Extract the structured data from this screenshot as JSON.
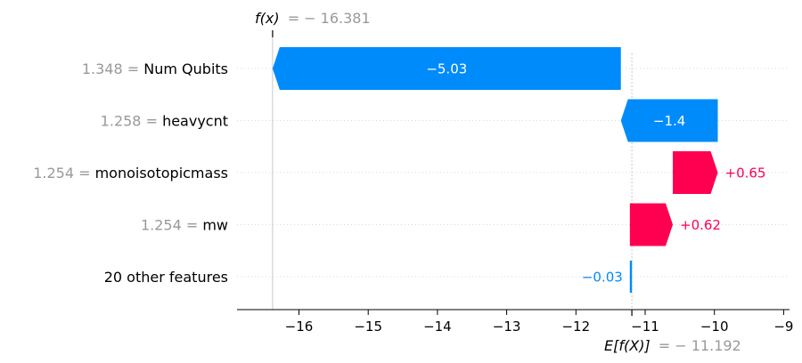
{
  "chart_data": {
    "type": "waterfall",
    "title": "",
    "xlabel": "",
    "ylabel": "",
    "xlim": [
      -16.8,
      -8.95
    ],
    "x_ticks": [
      -16,
      -15,
      -14,
      -13,
      -12,
      -11,
      -10,
      -9
    ],
    "x_tick_labels": [
      "−16",
      "−15",
      "−14",
      "−13",
      "−12",
      "−11",
      "−10",
      "−9"
    ],
    "base_value": -11.192,
    "final_value": -16.381,
    "fx_label": "f(x)",
    "fx_value_text": "= − 16.381",
    "ex_label": "E[f(X)]",
    "ex_value_text": "= − 11.192",
    "features": [
      {
        "value_text": "1.348",
        "name": "Num Qubits",
        "shap": -5.03,
        "label": "−5.03"
      },
      {
        "value_text": "1.258",
        "name": "heavycnt",
        "shap": -1.4,
        "label": "−1.4"
      },
      {
        "value_text": "1.254",
        "name": "monoisotopicmass",
        "shap": 0.65,
        "label": "+0.65"
      },
      {
        "value_text": "1.254",
        "name": "mw",
        "shap": 0.62,
        "label": "+0.62"
      },
      {
        "value_text": "",
        "name": "20 other features",
        "shap": -0.03,
        "label": "−0.03"
      }
    ],
    "colors": {
      "positive": "#ff0051",
      "negative": "#008bfb",
      "muted": "#999999",
      "grid": "#cccccc"
    },
    "grid": true
  }
}
